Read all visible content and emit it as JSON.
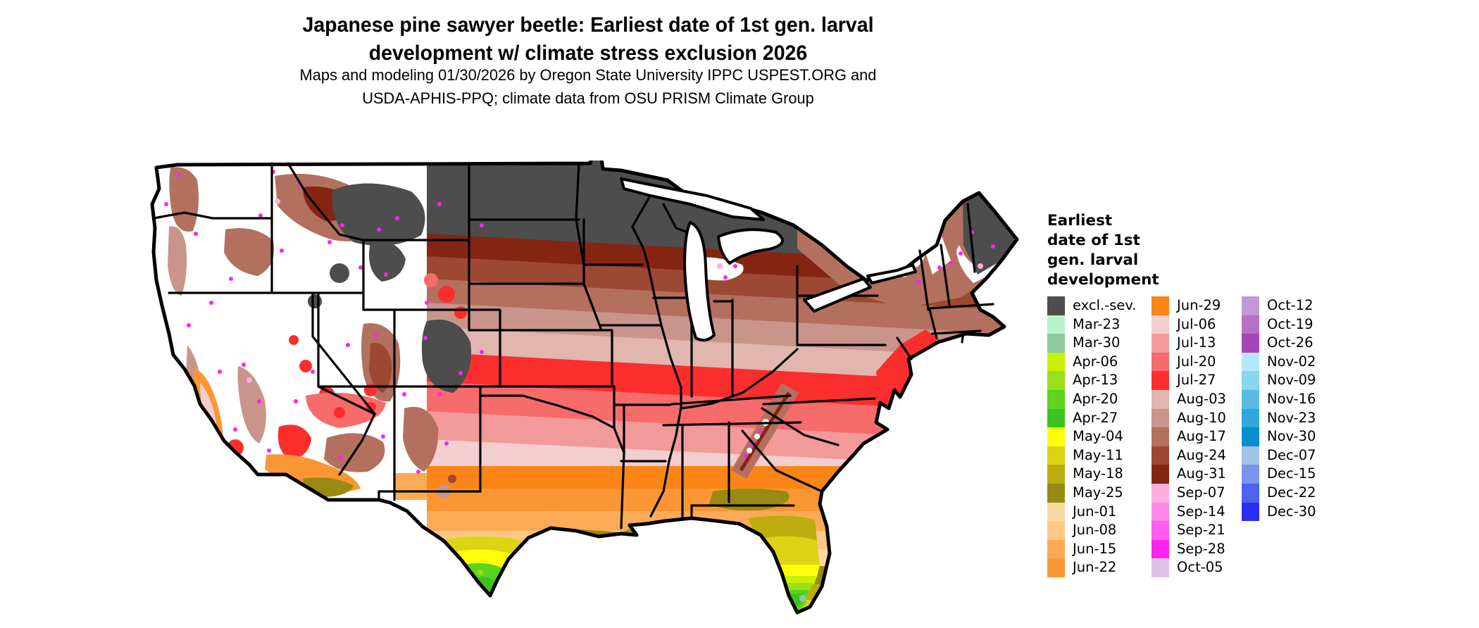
{
  "title": {
    "line1": "Japanese pine sawyer beetle: Earliest date of 1st gen. larval",
    "line2": "development w/ climate stress exclusion 2026"
  },
  "subtitle": {
    "line1": "Maps and modeling 01/30/2026 by Oregon State University IPPC USPEST.ORG and",
    "line2": "USDA-APHIS-PPQ; climate data from OSU PRISM Climate Group"
  },
  "map": {
    "region": "Contiguous United States",
    "kind": "choropleth raster of earliest date of 1st generation larval development"
  },
  "legend": {
    "title_lines": [
      "Earliest",
      "date of 1st",
      "gen. larval",
      "development"
    ],
    "columns": [
      {
        "items": [
          {
            "label": "excl.-sev.",
            "color": "#4d4d4d"
          },
          {
            "label": "Mar-23",
            "color": "#b8f2cd"
          },
          {
            "label": "Mar-30",
            "color": "#8fc99c"
          },
          {
            "label": "Apr-06",
            "color": "#c9f002"
          },
          {
            "label": "Apr-13",
            "color": "#97e01b"
          },
          {
            "label": "Apr-20",
            "color": "#5dd41e"
          },
          {
            "label": "Apr-27",
            "color": "#3cc41c"
          },
          {
            "label": "May-04",
            "color": "#fdfd0c"
          },
          {
            "label": "May-11",
            "color": "#dcd412"
          },
          {
            "label": "May-18",
            "color": "#bcac10"
          },
          {
            "label": "May-25",
            "color": "#988a12"
          },
          {
            "label": "Jun-01",
            "color": "#fcd9a2"
          },
          {
            "label": "Jun-08",
            "color": "#fcc884"
          },
          {
            "label": "Jun-15",
            "color": "#fbab56"
          },
          {
            "label": "Jun-22",
            "color": "#fa9634"
          }
        ]
      },
      {
        "items": [
          {
            "label": "Jun-29",
            "color": "#fb8516"
          },
          {
            "label": "Jul-06",
            "color": "#f2cece"
          },
          {
            "label": "Jul-13",
            "color": "#f29a9a"
          },
          {
            "label": "Jul-20",
            "color": "#f76b6b"
          },
          {
            "label": "Jul-27",
            "color": "#fb2e2e"
          },
          {
            "label": "Aug-03",
            "color": "#e0b6ae"
          },
          {
            "label": "Aug-10",
            "color": "#c9958a"
          },
          {
            "label": "Aug-17",
            "color": "#b3705f"
          },
          {
            "label": "Aug-24",
            "color": "#9c4833"
          },
          {
            "label": "Aug-31",
            "color": "#842512"
          },
          {
            "label": "Sep-07",
            "color": "#fdb0e0"
          },
          {
            "label": "Sep-14",
            "color": "#fd87e9"
          },
          {
            "label": "Sep-21",
            "color": "#fe5def"
          },
          {
            "label": "Sep-28",
            "color": "#fe22f3"
          },
          {
            "label": "Oct-05",
            "color": "#dec2e6"
          }
        ]
      },
      {
        "items": [
          {
            "label": "Oct-12",
            "color": "#c697d6"
          },
          {
            "label": "Oct-19",
            "color": "#b571c8"
          },
          {
            "label": "Oct-26",
            "color": "#a346b8"
          },
          {
            "label": "Nov-02",
            "color": "#b5e8fc"
          },
          {
            "label": "Nov-09",
            "color": "#89d4ef"
          },
          {
            "label": "Nov-16",
            "color": "#56bce4"
          },
          {
            "label": "Nov-23",
            "color": "#2fa7da"
          },
          {
            "label": "Nov-30",
            "color": "#0590cd"
          },
          {
            "label": "Dec-07",
            "color": "#a3c3e6"
          },
          {
            "label": "Dec-15",
            "color": "#7b93ec"
          },
          {
            "label": "Dec-22",
            "color": "#4c63ee"
          },
          {
            "label": "Dec-30",
            "color": "#2a2ef5"
          }
        ]
      }
    ]
  }
}
